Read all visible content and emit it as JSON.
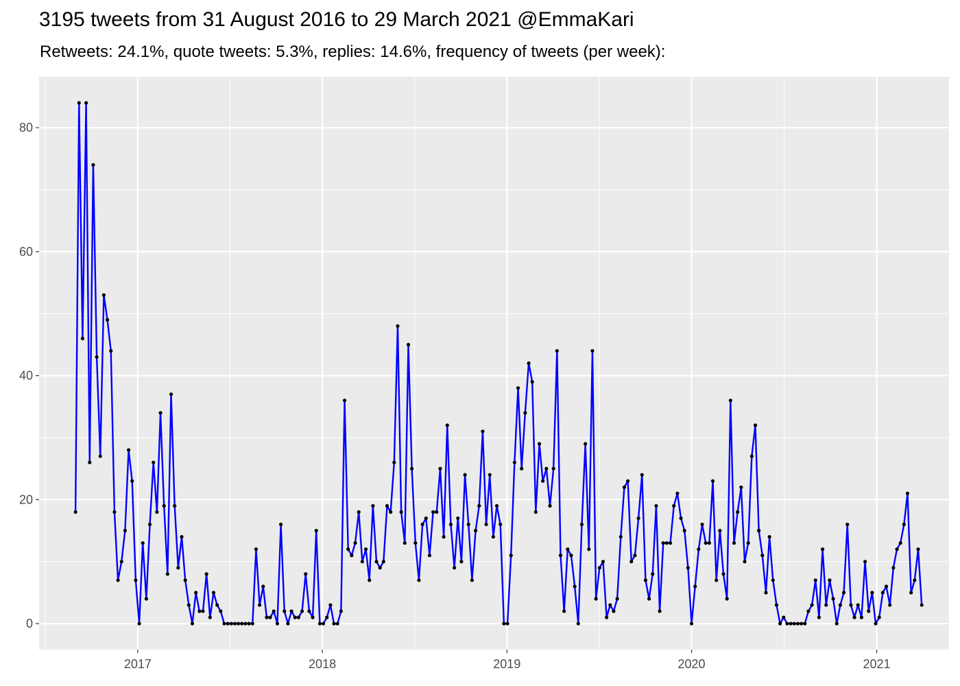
{
  "title": "3195 tweets from 31 August 2016 to 29 March 2021 @EmmaKari",
  "subtitle": "Retweets: 24.1%, quote tweets: 5.3%, replies: 14.6%, frequency of tweets (per week):",
  "chart_data": {
    "type": "line",
    "xlabel": "",
    "ylabel": "",
    "x_start": "2016-08-31",
    "x_interval": "week",
    "xlim": [
      "2016-06-20",
      "2021-05-24"
    ],
    "ylim": [
      -4.2,
      88.2
    ],
    "y_ticks": [
      0,
      20,
      40,
      60,
      80
    ],
    "x_ticks": [
      {
        "label": "2017",
        "date": "2017-01-01"
      },
      {
        "label": "2018",
        "date": "2018-01-01"
      },
      {
        "label": "2019",
        "date": "2019-01-01"
      },
      {
        "label": "2020",
        "date": "2020-01-01"
      },
      {
        "label": "2021",
        "date": "2021-01-01"
      }
    ],
    "grid": true,
    "line_color": "#0000ff",
    "point_color": "#000000",
    "panel_color": "#ebebeb",
    "values": [
      18,
      84,
      46,
      84,
      26,
      74,
      43,
      27,
      53,
      49,
      44,
      18,
      7,
      10,
      15,
      28,
      23,
      7,
      0,
      13,
      4,
      16,
      26,
      18,
      34,
      19,
      8,
      37,
      19,
      9,
      14,
      7,
      3,
      0,
      5,
      2,
      2,
      8,
      1,
      5,
      3,
      2,
      0,
      0,
      0,
      0,
      0,
      0,
      0,
      0,
      0,
      12,
      3,
      6,
      1,
      1,
      2,
      0,
      16,
      2,
      0,
      2,
      1,
      1,
      2,
      8,
      2,
      1,
      15,
      0,
      0,
      1,
      3,
      0,
      0,
      2,
      36,
      12,
      11,
      13,
      18,
      10,
      12,
      7,
      19,
      10,
      9,
      10,
      19,
      18,
      26,
      48,
      18,
      13,
      45,
      25,
      13,
      7,
      16,
      17,
      11,
      18,
      18,
      25,
      14,
      32,
      16,
      9,
      17,
      10,
      24,
      16,
      7,
      15,
      19,
      31,
      16,
      24,
      14,
      19,
      16,
      0,
      0,
      11,
      26,
      38,
      25,
      34,
      42,
      39,
      18,
      29,
      23,
      25,
      19,
      25,
      44,
      11,
      2,
      12,
      11,
      6,
      0,
      16,
      29,
      12,
      44,
      4,
      9,
      10,
      1,
      3,
      2,
      4,
      14,
      22,
      23,
      10,
      11,
      17,
      24,
      7,
      4,
      8,
      19,
      2,
      13,
      13,
      13,
      19,
      21,
      17,
      15,
      9,
      0,
      6,
      12,
      16,
      13,
      13,
      23,
      7,
      15,
      8,
      4,
      36,
      13,
      18,
      22,
      10,
      13,
      27,
      32,
      15,
      11,
      5,
      14,
      7,
      3,
      0,
      1,
      0,
      0,
      0,
      0,
      0,
      0,
      2,
      3,
      7,
      1,
      12,
      3,
      7,
      4,
      0,
      3,
      5,
      16,
      3,
      1,
      3,
      1,
      10,
      2,
      5,
      0,
      1,
      5,
      6,
      3,
      9,
      12,
      13,
      16,
      21,
      5,
      7,
      12,
      3
    ]
  }
}
